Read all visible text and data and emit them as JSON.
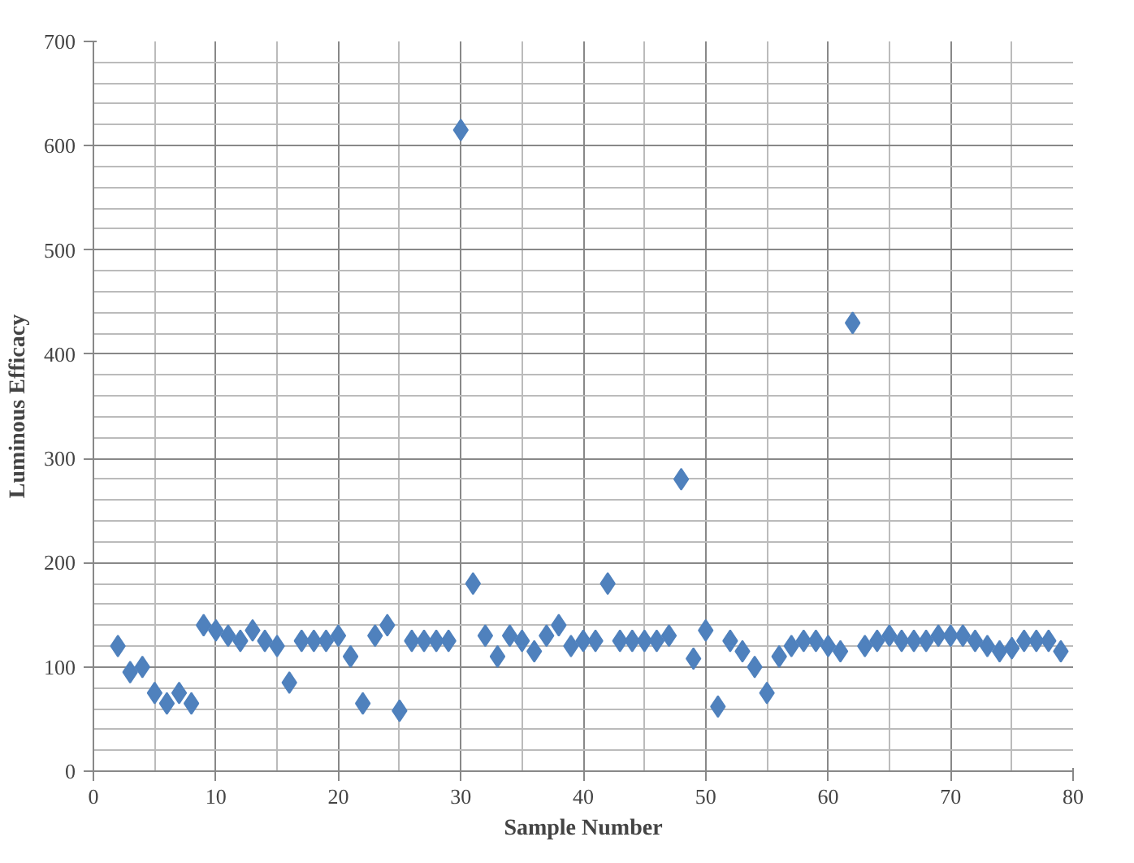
{
  "chart_data": {
    "type": "scatter",
    "xlabel": "Sample Number",
    "ylabel": "Luminous Efficacy",
    "x": [
      2,
      3,
      4,
      5,
      6,
      7,
      8,
      9,
      10,
      11,
      12,
      13,
      14,
      15,
      16,
      17,
      18,
      19,
      20,
      21,
      22,
      23,
      24,
      25,
      26,
      27,
      28,
      29,
      30,
      31,
      32,
      33,
      34,
      35,
      36,
      37,
      38,
      39,
      40,
      41,
      42,
      43,
      44,
      45,
      46,
      47,
      48,
      49,
      50,
      51,
      52,
      53,
      54,
      55,
      56,
      57,
      58,
      59,
      60,
      61,
      62,
      63,
      64,
      65,
      66,
      67,
      68,
      69,
      70,
      71,
      72,
      73,
      74,
      75,
      76,
      77,
      78,
      79
    ],
    "series": [
      {
        "color": "#4f81bd",
        "values": [
          120,
          95,
          100,
          75,
          65,
          75,
          65,
          140,
          135,
          130,
          125,
          135,
          125,
          120,
          85,
          125,
          125,
          125,
          130,
          110,
          65,
          130,
          140,
          58,
          125,
          125,
          125,
          125,
          615,
          180,
          130,
          110,
          130,
          125,
          115,
          130,
          140,
          120,
          125,
          125,
          180,
          125,
          125,
          125,
          125,
          130,
          280,
          108,
          135,
          62,
          125,
          115,
          100,
          75,
          110,
          120,
          125,
          125,
          120,
          115,
          430,
          120,
          125,
          130,
          125,
          125,
          125,
          130,
          130,
          130,
          125,
          120,
          115,
          118,
          125,
          125,
          125,
          115
        ]
      }
    ],
    "xlim": [
      0,
      80
    ],
    "ylim": [
      0,
      700
    ],
    "xticks": [
      0,
      10,
      20,
      30,
      40,
      50,
      60,
      70,
      80
    ],
    "yticks": [
      0,
      100,
      200,
      300,
      400,
      500,
      600,
      700
    ],
    "grid": true,
    "marker": "diamond"
  }
}
